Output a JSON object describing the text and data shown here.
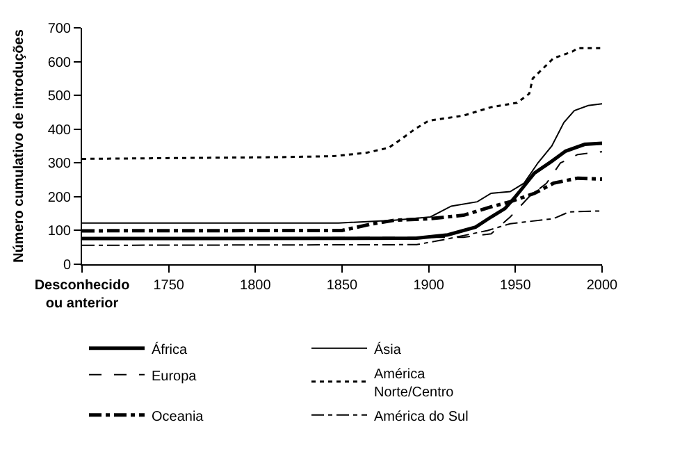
{
  "chart_data": {
    "type": "line",
    "ylabel": "Número cumulativo de introduções",
    "xlim": [
      1700,
      2000
    ],
    "xticks": [
      {
        "value": 1700,
        "label": "Desconhecido\nou anterior"
      },
      1750,
      1800,
      1850,
      1900,
      1950,
      2000
    ],
    "ylim": [
      0,
      700
    ],
    "yticks": [
      0,
      100,
      200,
      300,
      400,
      500,
      600,
      700
    ],
    "legend": "bottom",
    "marker": "none",
    "series": [
      {
        "name": "África",
        "color": "#000000",
        "line_style": "solid",
        "x": [
          1700,
          1893,
          1911,
          1927,
          1936,
          1944,
          1950,
          1954,
          1961,
          1971,
          1979,
          1990,
          2000
        ],
        "values": [
          76,
          77,
          87,
          110,
          140,
          165,
          200,
          225,
          270,
          305,
          335,
          355,
          358
        ]
      },
      {
        "name": "Ásia",
        "color": "#000000",
        "line_style": "solid",
        "x": [
          1700,
          1848,
          1880,
          1901,
          1913,
          1928,
          1936,
          1947,
          1955,
          1963,
          1971,
          1978,
          1984,
          1992,
          2000
        ],
        "values": [
          122,
          122,
          130,
          140,
          172,
          185,
          210,
          215,
          240,
          300,
          350,
          420,
          455,
          470,
          475
        ]
      },
      {
        "name": "Europa",
        "color": "#000000",
        "line_style": "dashed",
        "x": [
          1700,
          1920,
          1936,
          1947,
          1958,
          1968,
          1976,
          1986,
          2000
        ],
        "values": [
          76,
          80,
          90,
          140,
          200,
          240,
          300,
          325,
          333
        ]
      },
      {
        "name": "América\nNorte/Centro",
        "color": "#000000",
        "line_style": "dotted",
        "x": [
          1700,
          1813,
          1845,
          1864,
          1877,
          1884,
          1892,
          1900,
          1920,
          1936,
          1951,
          1958,
          1960,
          1964,
          1972,
          1983,
          1986,
          2000
        ],
        "values": [
          312,
          317,
          320,
          330,
          345,
          370,
          400,
          425,
          440,
          465,
          478,
          505,
          550,
          570,
          610,
          630,
          640,
          640
        ]
      },
      {
        "name": "Oceania",
        "color": "#000000",
        "line_style": "dashdot",
        "x": [
          1700,
          1850,
          1866,
          1880,
          1901,
          1920,
          1936,
          1947,
          1961,
          1972,
          1986,
          2000
        ],
        "values": [
          99,
          100,
          118,
          130,
          135,
          145,
          170,
          185,
          210,
          240,
          255,
          252
        ]
      },
      {
        "name": "América do Sul",
        "color": "#000000",
        "line_style": "dashdot",
        "x": [
          1700,
          1893,
          1911,
          1934,
          1947,
          1972,
          1981,
          2000
        ],
        "values": [
          56,
          58,
          75,
          100,
          120,
          135,
          155,
          158
        ]
      }
    ]
  }
}
